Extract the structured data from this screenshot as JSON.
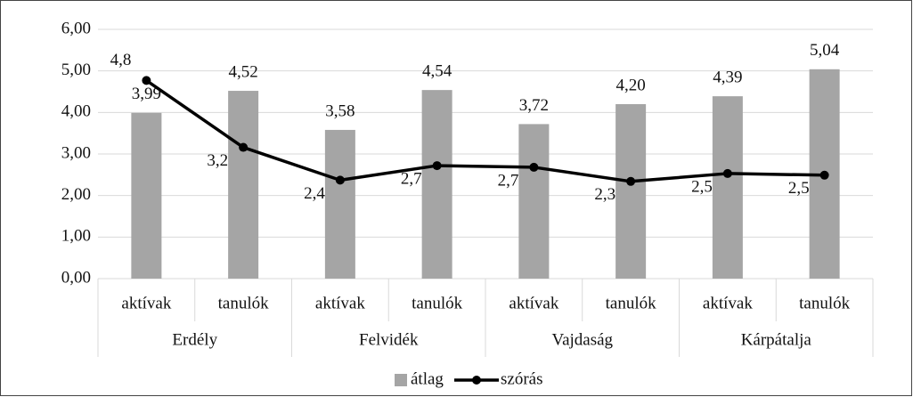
{
  "chart_data": {
    "type": "bar",
    "categories": [
      "aktívak",
      "tanulók",
      "aktívak",
      "tanulók",
      "aktívak",
      "tanulók",
      "aktívak",
      "tanulók"
    ],
    "groups": [
      "Erdély",
      "Felvidék",
      "Vajdaság",
      "Kárpátalja"
    ],
    "series": [
      {
        "name": "átlag",
        "type": "bar",
        "color": "#a5a5a5",
        "values": [
          3.99,
          4.52,
          3.58,
          4.54,
          3.72,
          4.2,
          4.39,
          5.04
        ],
        "value_labels": [
          "3,99",
          "4,52",
          "3,58",
          "4,54",
          "3,72",
          "4,20",
          "4,39",
          "5,04"
        ]
      },
      {
        "name": "szórás",
        "type": "line",
        "color": "#000000",
        "values": [
          4.77,
          3.16,
          2.37,
          2.72,
          2.68,
          2.34,
          2.53,
          2.49
        ],
        "value_labels": [
          "4,8",
          "3,2",
          "2,4",
          "2,7",
          "2,7",
          "2,3",
          "2,5",
          "2,5"
        ]
      }
    ],
    "ylim": [
      0,
      6
    ],
    "yticks": [
      {
        "value": 0,
        "label": "0,00"
      },
      {
        "value": 1,
        "label": "1,00"
      },
      {
        "value": 2,
        "label": "2,00"
      },
      {
        "value": 3,
        "label": "3,00"
      },
      {
        "value": 4,
        "label": "4,00"
      },
      {
        "value": 5,
        "label": "5,00"
      },
      {
        "value": 6,
        "label": "6,00"
      }
    ],
    "legend": "bottom"
  }
}
